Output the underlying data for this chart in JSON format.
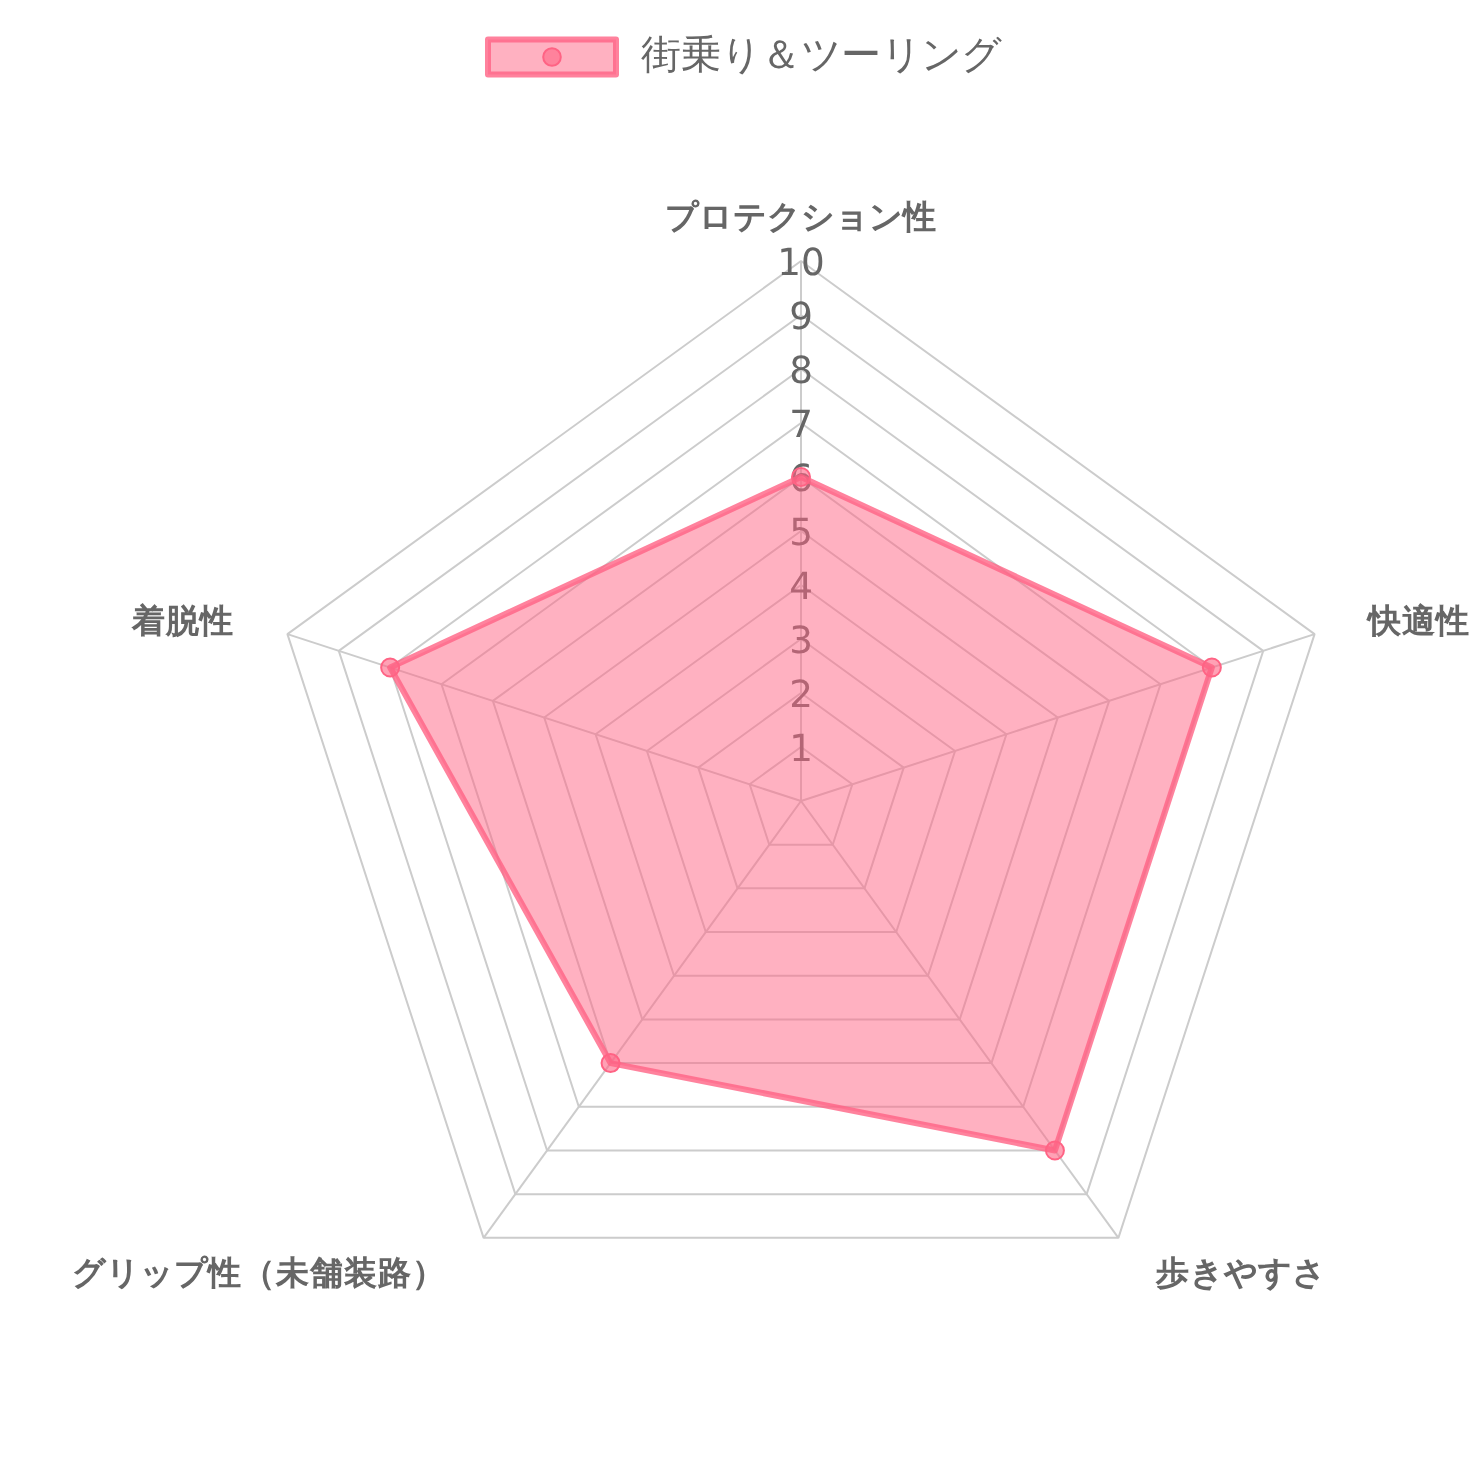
{
  "chart_data": {
    "type": "radar",
    "categories": [
      "プロテクション性",
      "快適性",
      "歩きやすさ",
      "グリップ性（未舗装路）",
      "着脱性"
    ],
    "series": [
      {
        "name": "街乗り＆ツーリング",
        "color": "#ff6384",
        "values": [
          6,
          8,
          8,
          6,
          8
        ]
      }
    ],
    "ylim": [
      0,
      10
    ],
    "yticks": [
      1,
      2,
      3,
      4,
      5,
      6,
      7,
      8,
      9,
      10
    ],
    "grid": true,
    "legend": "top",
    "marker": "circle"
  }
}
